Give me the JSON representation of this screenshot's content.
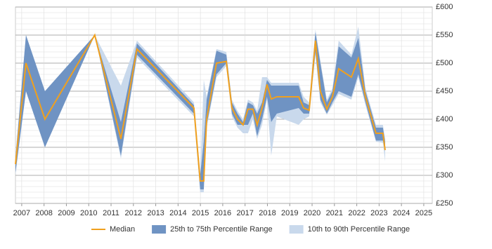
{
  "chart_data": {
    "type": "band-line",
    "x": [
      2006.72,
      2007.19,
      2008.04,
      2010.27,
      2011.44,
      2012.16,
      2014.71,
      2014.99,
      2015.15,
      2015.28,
      2015.72,
      2016.16,
      2016.41,
      2016.66,
      2016.91,
      2017.13,
      2017.35,
      2017.54,
      2017.76,
      2017.98,
      2018.17,
      2018.42,
      2019.4,
      2019.62,
      2019.87,
      2020.15,
      2020.37,
      2020.66,
      2020.91,
      2021.19,
      2021.76,
      2022.07,
      2022.39,
      2022.86,
      2023.17,
      2023.27
    ],
    "bands": [
      {
        "name": "10th to 90th Percentile Range",
        "color": "#c9d9ec",
        "low": [
          300,
          450,
          350,
          550,
          330,
          510,
          405,
          270,
          270,
          385,
          475,
          495,
          405,
          385,
          375,
          375,
          400,
          365,
          390,
          435,
          335,
          405,
          390,
          400,
          405,
          515,
          430,
          408,
          425,
          445,
          435,
          475,
          425,
          360,
          358,
          325
        ],
        "high": [
          335,
          550,
          450,
          550,
          460,
          540,
          430,
          300,
          470,
          440,
          525,
          520,
          435,
          415,
          400,
          435,
          430,
          415,
          475,
          475,
          465,
          465,
          465,
          440,
          430,
          560,
          505,
          435,
          455,
          540,
          515,
          565,
          455,
          390,
          390,
          365
        ]
      },
      {
        "name": "25th to 75th Percentile Range",
        "color": "#6f93c3",
        "low": [
          305,
          450,
          350,
          550,
          335,
          515,
          410,
          275,
          275,
          390,
          480,
          500,
          410,
          390,
          390,
          390,
          410,
          370,
          400,
          440,
          395,
          410,
          420,
          410,
          410,
          520,
          435,
          410,
          430,
          450,
          440,
          480,
          430,
          362,
          362,
          345
        ],
        "high": [
          330,
          550,
          450,
          550,
          395,
          535,
          425,
          300,
          360,
          435,
          522,
          515,
          430,
          410,
          395,
          430,
          425,
          410,
          430,
          470,
          460,
          460,
          460,
          430,
          425,
          555,
          500,
          430,
          450,
          530,
          510,
          545,
          450,
          385,
          385,
          360
        ]
      }
    ],
    "series": [
      {
        "name": "Median",
        "color": "#f0a01e",
        "values": [
          320,
          500,
          400,
          550,
          365,
          525,
          420,
          290,
          290,
          400,
          500,
          503,
          420,
          400,
          390,
          418,
          418,
          390,
          420,
          462,
          436,
          440,
          440,
          420,
          416,
          540,
          450,
          418,
          440,
          490,
          475,
          508,
          440,
          375,
          375,
          345
        ]
      }
    ],
    "xlim": [
      2006.72,
      2025.38
    ],
    "xticks": [
      2007,
      2008,
      2009,
      2010,
      2011,
      2012,
      2013,
      2014,
      2015,
      2016,
      2017,
      2018,
      2019,
      2020,
      2021,
      2022,
      2023,
      2024,
      2025
    ],
    "ylim": [
      250,
      600
    ],
    "yticks": [
      {
        "value": 250,
        "label": "£250"
      },
      {
        "value": 300,
        "label": "£300"
      },
      {
        "value": 350,
        "label": "£350"
      },
      {
        "value": 400,
        "label": "£400"
      },
      {
        "value": 450,
        "label": "£450"
      },
      {
        "value": 500,
        "label": "£500"
      },
      {
        "value": 550,
        "label": "£550"
      },
      {
        "value": 600,
        "label": "£600"
      }
    ],
    "minor_grid": 10,
    "grid": true,
    "legend": "bottom"
  }
}
